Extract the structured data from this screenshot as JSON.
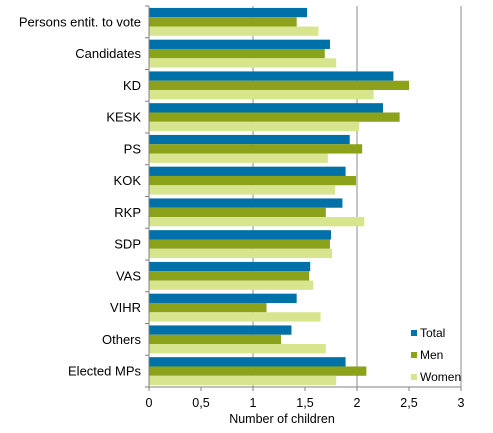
{
  "chart_data": {
    "type": "bar",
    "orientation": "horizontal",
    "categories": [
      "Persons entit. to vote",
      "Candidates",
      "KD",
      "KESK",
      "PS",
      "KOK",
      "RKP",
      "SDP",
      "VAS",
      "VIHR",
      "Others",
      "Elected MPs"
    ],
    "series": [
      {
        "name": "Total",
        "color": "#0070A8",
        "values": [
          1.52,
          1.74,
          2.35,
          2.25,
          1.93,
          1.89,
          1.86,
          1.75,
          1.55,
          1.42,
          1.37,
          1.89
        ]
      },
      {
        "name": "Men",
        "color": "#8BA21A",
        "values": [
          1.42,
          1.69,
          2.5,
          2.41,
          2.05,
          1.99,
          1.7,
          1.74,
          1.54,
          1.13,
          1.27,
          2.09
        ]
      },
      {
        "name": "Women",
        "color": "#D8E58E",
        "values": [
          1.63,
          1.8,
          2.16,
          2.02,
          1.72,
          1.79,
          2.07,
          1.76,
          1.58,
          1.65,
          1.7,
          1.8
        ]
      }
    ],
    "xlabel": "Number of children",
    "xlim": [
      0,
      3
    ],
    "xticks": [
      "0",
      "0,5",
      "1",
      "1,5",
      "2",
      "2,5",
      "3"
    ],
    "grid": "vertical major lines",
    "legend": "bottom-right"
  }
}
